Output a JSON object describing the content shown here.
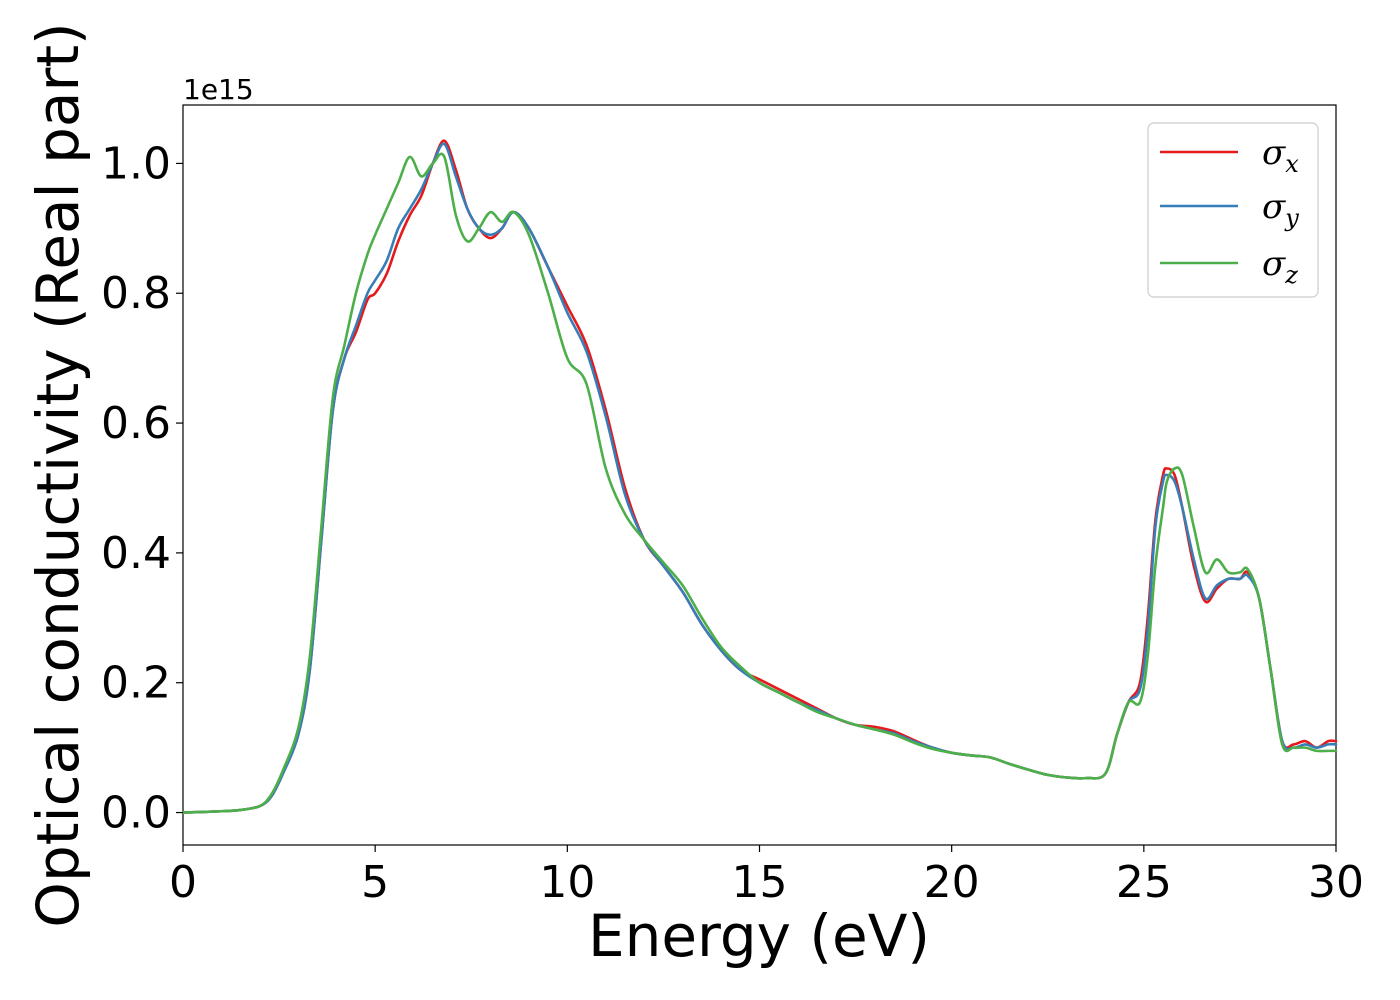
{
  "chart_data": {
    "type": "line",
    "title": "",
    "xlabel": "Energy (eV)",
    "ylabel": "Optical conductivity (Real part)",
    "y_offset_text": "1e15",
    "xlim": [
      0,
      30
    ],
    "ylim": [
      -0.05,
      1.09
    ],
    "x_ticks": [
      0,
      5,
      10,
      15,
      20,
      25,
      30
    ],
    "x_tick_labels": [
      "0",
      "5",
      "10",
      "15",
      "20",
      "25",
      "30"
    ],
    "y_ticks": [
      0.0,
      0.2,
      0.4,
      0.6,
      0.8,
      1.0
    ],
    "y_tick_labels": [
      "0.0",
      "0.2",
      "0.4",
      "0.6",
      "0.8",
      "1.0"
    ],
    "grid": false,
    "legend_position": "top-right",
    "series": [
      {
        "name": "σ",
        "subscript": "x",
        "color": "#e41a1c",
        "x": [
          0,
          1,
          1.5,
          2,
          2.3,
          2.6,
          3,
          3.3,
          3.6,
          3.9,
          4.2,
          4.5,
          4.8,
          5.0,
          5.3,
          5.6,
          5.9,
          6.2,
          6.5,
          6.8,
          7.1,
          7.4,
          7.7,
          8.0,
          8.3,
          8.6,
          9.0,
          9.5,
          10.0,
          10.5,
          11.0,
          11.5,
          12.0,
          12.5,
          13.0,
          13.5,
          14.0,
          14.5,
          15.0,
          15.5,
          16.0,
          16.5,
          17.0,
          17.5,
          18.0,
          18.5,
          19.0,
          19.5,
          20.0,
          20.5,
          21.0,
          21.5,
          22.0,
          22.5,
          23.0,
          23.5,
          24.0,
          24.3,
          24.6,
          24.9,
          25.1,
          25.3,
          25.5,
          25.6,
          25.8,
          26.0,
          26.3,
          26.6,
          26.9,
          27.2,
          27.5,
          27.7,
          28.0,
          28.3,
          28.6,
          28.9,
          29.2,
          29.5,
          29.8,
          30.0
        ],
        "y": [
          0.0,
          0.002,
          0.004,
          0.01,
          0.025,
          0.06,
          0.12,
          0.22,
          0.42,
          0.62,
          0.7,
          0.74,
          0.79,
          0.8,
          0.83,
          0.88,
          0.92,
          0.95,
          1.0,
          1.035,
          0.99,
          0.93,
          0.9,
          0.885,
          0.9,
          0.925,
          0.9,
          0.84,
          0.78,
          0.72,
          0.62,
          0.5,
          0.42,
          0.38,
          0.34,
          0.29,
          0.25,
          0.22,
          0.205,
          0.19,
          0.175,
          0.16,
          0.145,
          0.135,
          0.132,
          0.125,
          0.112,
          0.1,
          0.092,
          0.088,
          0.085,
          0.075,
          0.066,
          0.058,
          0.054,
          0.053,
          0.06,
          0.12,
          0.17,
          0.2,
          0.3,
          0.45,
          0.52,
          0.53,
          0.52,
          0.47,
          0.38,
          0.325,
          0.345,
          0.36,
          0.36,
          0.37,
          0.33,
          0.22,
          0.11,
          0.105,
          0.11,
          0.1,
          0.11,
          0.11
        ]
      },
      {
        "name": "σ",
        "subscript": "y",
        "color": "#377eb8",
        "x": [
          0,
          1,
          1.5,
          2,
          2.3,
          2.6,
          3,
          3.3,
          3.6,
          3.9,
          4.2,
          4.5,
          4.8,
          5.0,
          5.3,
          5.6,
          5.9,
          6.2,
          6.5,
          6.8,
          7.1,
          7.4,
          7.7,
          8.0,
          8.3,
          8.6,
          9.0,
          9.5,
          10.0,
          10.5,
          11.0,
          11.5,
          12.0,
          12.5,
          13.0,
          13.5,
          14.0,
          14.5,
          15.0,
          15.5,
          16.0,
          16.5,
          17.0,
          17.5,
          18.0,
          18.5,
          19.0,
          19.5,
          20.0,
          20.5,
          21.0,
          21.5,
          22.0,
          22.5,
          23.0,
          23.5,
          24.0,
          24.3,
          24.6,
          24.9,
          25.1,
          25.3,
          25.5,
          25.6,
          25.8,
          26.0,
          26.3,
          26.6,
          26.9,
          27.2,
          27.5,
          27.7,
          28.0,
          28.3,
          28.6,
          28.9,
          29.2,
          29.5,
          29.8,
          30.0
        ],
        "y": [
          0.0,
          0.002,
          0.004,
          0.01,
          0.025,
          0.06,
          0.12,
          0.22,
          0.42,
          0.62,
          0.7,
          0.75,
          0.8,
          0.82,
          0.85,
          0.9,
          0.93,
          0.96,
          1.0,
          1.03,
          0.98,
          0.93,
          0.9,
          0.89,
          0.9,
          0.925,
          0.9,
          0.84,
          0.77,
          0.71,
          0.61,
          0.49,
          0.42,
          0.38,
          0.34,
          0.29,
          0.25,
          0.22,
          0.2,
          0.185,
          0.17,
          0.158,
          0.145,
          0.135,
          0.128,
          0.122,
          0.11,
          0.1,
          0.092,
          0.088,
          0.085,
          0.075,
          0.066,
          0.058,
          0.054,
          0.053,
          0.06,
          0.12,
          0.17,
          0.19,
          0.28,
          0.44,
          0.51,
          0.52,
          0.51,
          0.47,
          0.39,
          0.33,
          0.35,
          0.36,
          0.36,
          0.365,
          0.33,
          0.22,
          0.11,
          0.1,
          0.105,
          0.1,
          0.105,
          0.105
        ]
      },
      {
        "name": "σ",
        "subscript": "z",
        "color": "#4daf4a",
        "x": [
          0,
          1,
          1.5,
          2,
          2.3,
          2.6,
          3,
          3.3,
          3.6,
          3.9,
          4.2,
          4.5,
          4.8,
          5.0,
          5.3,
          5.6,
          5.9,
          6.2,
          6.5,
          6.8,
          7.1,
          7.4,
          7.7,
          8.0,
          8.3,
          8.6,
          9.0,
          9.5,
          10.0,
          10.5,
          11.0,
          11.5,
          12.0,
          12.5,
          13.0,
          13.5,
          14.0,
          14.5,
          15.0,
          15.5,
          16.0,
          16.5,
          17.0,
          17.5,
          18.0,
          18.5,
          19.0,
          19.5,
          20.0,
          20.5,
          21.0,
          21.5,
          22.0,
          22.5,
          23.0,
          23.5,
          24.0,
          24.3,
          24.6,
          24.9,
          25.1,
          25.3,
          25.5,
          25.6,
          25.8,
          26.0,
          26.3,
          26.6,
          26.9,
          27.2,
          27.5,
          27.7,
          28.0,
          28.3,
          28.6,
          28.9,
          29.2,
          29.5,
          29.8,
          30.0
        ],
        "y": [
          0.0,
          0.002,
          0.004,
          0.01,
          0.028,
          0.065,
          0.13,
          0.24,
          0.44,
          0.64,
          0.72,
          0.8,
          0.86,
          0.89,
          0.93,
          0.97,
          1.01,
          0.98,
          1.0,
          1.01,
          0.92,
          0.88,
          0.9,
          0.925,
          0.91,
          0.925,
          0.89,
          0.8,
          0.7,
          0.66,
          0.53,
          0.46,
          0.42,
          0.385,
          0.35,
          0.3,
          0.255,
          0.225,
          0.2,
          0.185,
          0.17,
          0.155,
          0.145,
          0.135,
          0.128,
          0.12,
          0.108,
          0.098,
          0.092,
          0.088,
          0.085,
          0.075,
          0.066,
          0.058,
          0.054,
          0.053,
          0.06,
          0.12,
          0.17,
          0.17,
          0.24,
          0.38,
          0.47,
          0.51,
          0.53,
          0.52,
          0.44,
          0.37,
          0.39,
          0.37,
          0.37,
          0.375,
          0.33,
          0.22,
          0.105,
          0.1,
          0.1,
          0.095,
          0.095,
          0.095
        ]
      }
    ]
  }
}
